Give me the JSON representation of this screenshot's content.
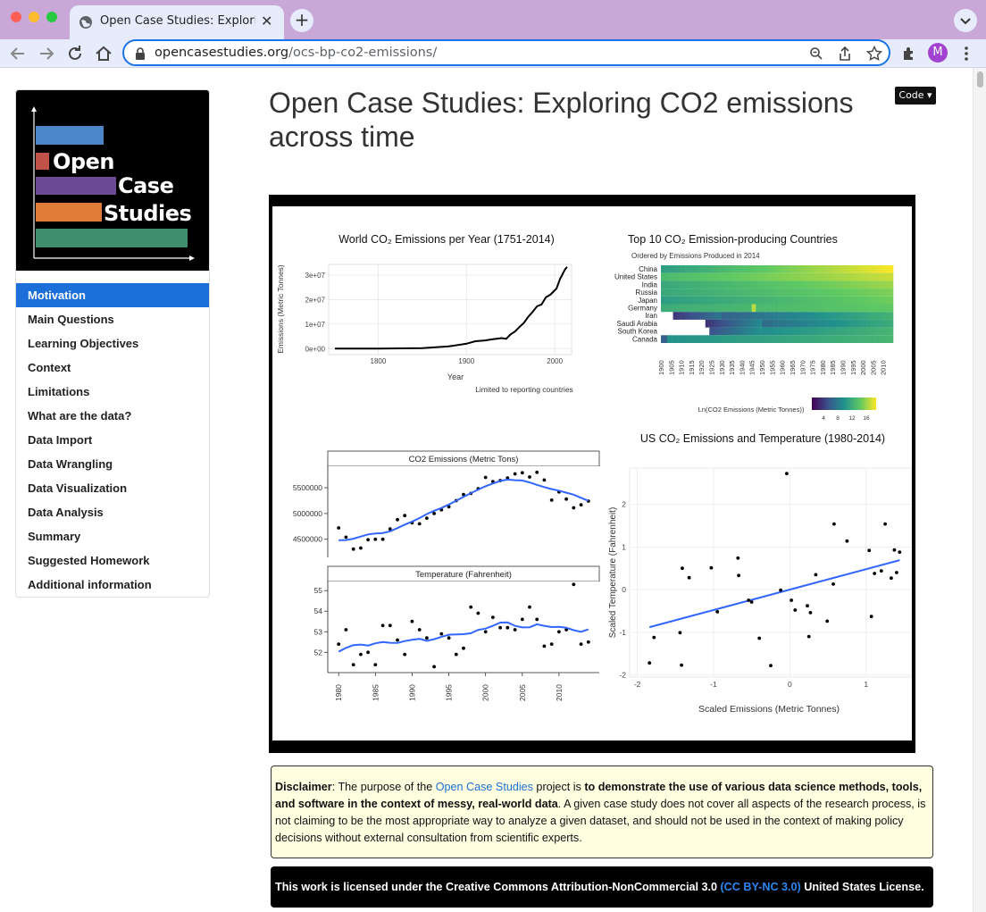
{
  "browser": {
    "tab_title": "Open Case Studies: Exploring CO2 emissions across time",
    "url_host": "opencasestudies.org",
    "url_path": "/ocs-bp-co2-emissions/",
    "profile_initial": "M"
  },
  "logo": {
    "line1": "Open",
    "line2": "Case",
    "line3": "Studies"
  },
  "sidebar": {
    "items": [
      {
        "label": "Motivation",
        "active": true
      },
      {
        "label": "Main Questions"
      },
      {
        "label": "Learning Objectives"
      },
      {
        "label": "Context"
      },
      {
        "label": "Limitations"
      },
      {
        "label": "What are the data?"
      },
      {
        "label": "Data Import"
      },
      {
        "label": "Data Wrangling"
      },
      {
        "label": "Data Visualization"
      },
      {
        "label": "Data Analysis"
      },
      {
        "label": "Summary"
      },
      {
        "label": "Suggested Homework"
      },
      {
        "label": "Additional information"
      }
    ]
  },
  "page": {
    "title": "Open Case Studies: Exploring CO2 emissions across time",
    "code_button": "Code"
  },
  "disclaimer": {
    "label": "Disclaimer",
    "text_before": ": The purpose of the ",
    "link": "Open Case Studies",
    "text_middle": " project is ",
    "bold_text": "to demonstrate the use of various data science methods, tools, and software in the context of messy, real-world data",
    "text_after": ". A given case study does not cover all aspects of the research process, is not claiming to be the most appropriate way to analyze a given dataset, and should not be used in the context of making policy decisions without external consultation from scientific experts."
  },
  "license": {
    "text_before": "This work is licensed under the Creative Commons Attribution-NonCommercial 3.0 ",
    "link": "(CC BY-NC 3.0)",
    "text_after": " United States License."
  },
  "colors": {
    "accent": "#1c6ed8",
    "tab_bg": "#c9a8d8",
    "toolbar_bg": "#e6ecfb",
    "fit_line": "#3366ff"
  },
  "chart_data": [
    {
      "type": "line",
      "title": "World CO₂ Emissions per Year (1751-2014)",
      "xlabel": "Year",
      "ylabel": "Emissions (Metric Tonnes)",
      "caption": "Limited to reporting countries",
      "xlim": [
        1751,
        2014
      ],
      "ylim": [
        -1000000,
        34000000
      ],
      "xticks": [
        "1800",
        "1900",
        "2000"
      ],
      "yticks": [
        "0e+00",
        "1e+07",
        "2e+07",
        "3e+07"
      ],
      "x": [
        1751,
        1800,
        1850,
        1880,
        1900,
        1910,
        1920,
        1930,
        1940,
        1945,
        1950,
        1955,
        1960,
        1965,
        1970,
        1975,
        1980,
        1985,
        1990,
        1995,
        2000,
        2002,
        2004,
        2006,
        2008,
        2010,
        2012,
        2014
      ],
      "values": [
        10000,
        30000,
        200000,
        900000,
        2000000,
        3000000,
        3300000,
        3800000,
        4300000,
        4000000,
        5800000,
        7000000,
        8800000,
        10500000,
        13000000,
        15000000,
        17300000,
        18000000,
        21000000,
        22000000,
        23800000,
        24500000,
        26500000,
        28500000,
        29800000,
        31200000,
        32500000,
        33300000
      ]
    },
    {
      "type": "heatmap",
      "title": "Top 10 CO₂ Emission-producing Countries",
      "subtitle": "Ordered by Emissions Produced in 2014",
      "rows": [
        "China",
        "United States",
        "India",
        "Russia",
        "Japan",
        "Germany",
        "Iran",
        "Saudi Arabia",
        "South Korea",
        "Canada"
      ],
      "xticks": [
        "1900",
        "1905",
        "1910",
        "1915",
        "1920",
        "1925",
        "1930",
        "1935",
        "1940",
        "1945",
        "1950",
        "1955",
        "1960",
        "1965",
        "1970",
        "1975",
        "1980",
        "1985",
        "1990",
        "1995",
        "2000",
        "2005",
        "2010"
      ],
      "legend_title": "Ln(CO2 Emissions (Metric Tonnes))",
      "legend_ticks": [
        "4",
        "8",
        "12",
        "16"
      ]
    },
    {
      "type": "scatter",
      "panel": "CO2 Emissions (Metric Tons)",
      "xlim": [
        1979,
        2015
      ],
      "ylim": [
        4200000,
        5900000
      ],
      "yticks": [
        "4500000",
        "5000000",
        "5500000"
      ],
      "x": [
        1980,
        1981,
        1982,
        1983,
        1984,
        1985,
        1986,
        1987,
        1988,
        1989,
        1990,
        1991,
        1992,
        1993,
        1994,
        1995,
        1996,
        1997,
        1998,
        1999,
        2000,
        2001,
        2002,
        2003,
        2004,
        2005,
        2006,
        2007,
        2008,
        2009,
        2010,
        2011,
        2012,
        2013,
        2014
      ],
      "values": [
        4720000,
        4540000,
        4310000,
        4330000,
        4490000,
        4500000,
        4500000,
        4700000,
        4880000,
        4960000,
        4820000,
        4800000,
        4910000,
        5000000,
        5070000,
        5130000,
        5250000,
        5370000,
        5390000,
        5480000,
        5700000,
        5620000,
        5640000,
        5690000,
        5770000,
        5790000,
        5710000,
        5800000,
        5650000,
        5260000,
        5420000,
        5280000,
        5110000,
        5170000,
        5240000
      ]
    },
    {
      "type": "scatter",
      "panel": "Temperature (Fahrenheit)",
      "xlim": [
        1979,
        2015
      ],
      "ylim": [
        51.1,
        55.4
      ],
      "yticks": [
        "52",
        "53",
        "54",
        "55"
      ],
      "xticks": [
        "1980",
        "1985",
        "1990",
        "1995",
        "2000",
        "2005",
        "2010"
      ],
      "x": [
        1980,
        1981,
        1982,
        1983,
        1984,
        1985,
        1986,
        1987,
        1988,
        1989,
        1990,
        1991,
        1992,
        1993,
        1994,
        1995,
        1996,
        1997,
        1998,
        1999,
        2000,
        2001,
        2002,
        2003,
        2004,
        2005,
        2006,
        2007,
        2008,
        2009,
        2010,
        2011,
        2012,
        2013,
        2014
      ],
      "values": [
        52.4,
        53.1,
        51.4,
        51.9,
        52.0,
        51.4,
        53.3,
        53.3,
        52.6,
        51.9,
        53.5,
        53.1,
        52.7,
        51.3,
        52.9,
        52.7,
        51.9,
        52.2,
        54.2,
        53.9,
        53.0,
        53.7,
        53.2,
        53.2,
        53.1,
        53.6,
        54.2,
        53.6,
        52.3,
        52.4,
        53.0,
        53.1,
        55.3,
        52.4,
        52.5
      ]
    },
    {
      "type": "scatter",
      "title": "US CO₂ Emissions and Temperature (1980-2014)",
      "xlabel": "Scaled Emissions (Metric Tonnes)",
      "ylabel": "Scaled Temperature (Fahrenheit)",
      "xlim": [
        -2.1,
        1.6
      ],
      "ylim": [
        -2.05,
        2.85
      ],
      "xticks": [
        "-2",
        "-1",
        "0",
        "1"
      ],
      "yticks": [
        "-2",
        "-1",
        "0",
        "1",
        "2"
      ],
      "x": [
        -1.84,
        -1.78,
        -1.44,
        -1.42,
        -1.41,
        -1.32,
        -1.03,
        -0.95,
        -0.68,
        -0.67,
        -0.54,
        -0.5,
        -0.4,
        -0.25,
        -0.12,
        -0.04,
        0.02,
        0.07,
        0.23,
        0.25,
        0.27,
        0.34,
        0.49,
        0.57,
        0.58,
        0.75,
        1.04,
        1.07,
        1.11,
        1.2,
        1.25,
        1.33,
        1.37,
        1.44,
        1.4
      ],
      "values": [
        -1.72,
        -1.12,
        -1.01,
        -1.77,
        0.5,
        0.28,
        0.51,
        -0.52,
        0.74,
        0.33,
        -0.25,
        -0.29,
        -1.14,
        -1.78,
        -0.01,
        2.72,
        -0.25,
        -0.48,
        -0.38,
        -1.1,
        -0.54,
        0.35,
        -0.74,
        0.13,
        1.54,
        1.14,
        0.92,
        -0.63,
        0.38,
        0.44,
        1.54,
        0.27,
        0.93,
        0.88,
        0.4
      ],
      "fit": {
        "x": [
          -1.84,
          1.44
        ],
        "y": [
          -0.88,
          0.69
        ]
      }
    }
  ]
}
